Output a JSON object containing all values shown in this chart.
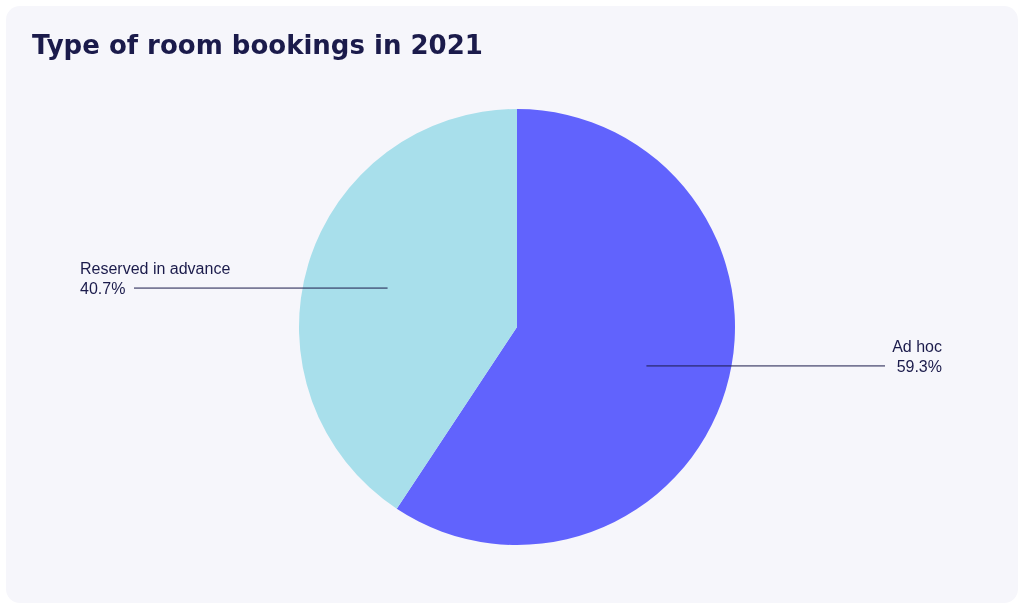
{
  "chart_data": {
    "type": "pie",
    "title": "Type of room bookings in 2021",
    "categories": [
      "Ad hoc",
      "Reserved in advance"
    ],
    "values": [
      59.3,
      40.7
    ],
    "colors": [
      "#6163fd",
      "#a8dfeb"
    ],
    "value_labels": [
      "59.3%",
      "40.7%"
    ],
    "legend": false
  }
}
